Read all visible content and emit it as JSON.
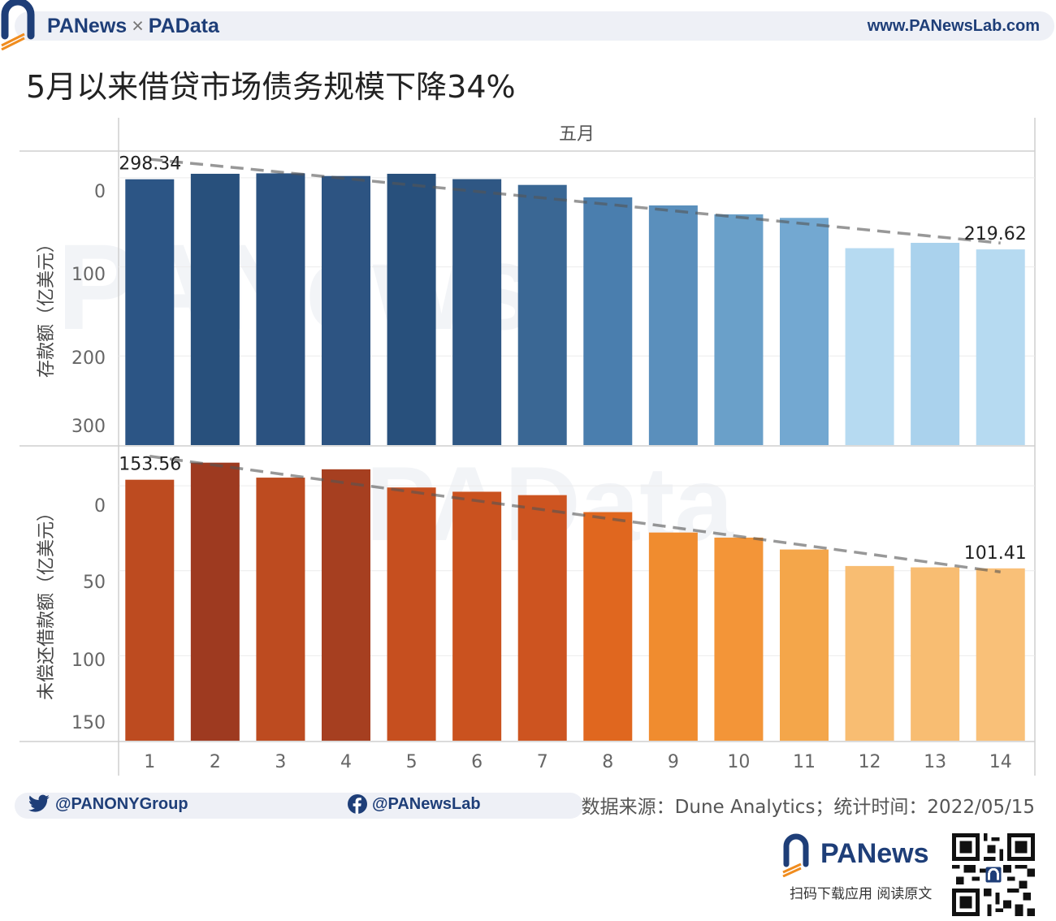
{
  "header": {
    "brand_left": "PANews",
    "brand_times": "×",
    "brand_right": "PAData",
    "website": "www.PANewsLab.com"
  },
  "title": "5月以来借贷市场债务规模下降34%",
  "chart_data": [
    {
      "type": "bar",
      "facet_header": "五月",
      "categories": [
        "1",
        "2",
        "3",
        "4",
        "5",
        "6",
        "7",
        "8",
        "9",
        "10",
        "11",
        "12",
        "13",
        "14"
      ],
      "values": [
        298.34,
        304.5,
        305.0,
        302.0,
        304.5,
        298.5,
        292.0,
        278.0,
        269.0,
        259.0,
        255.0,
        221.0,
        227.0,
        219.62
      ],
      "ylabel": "存款额（亿美元）",
      "ylim": [
        0,
        330
      ],
      "yticks": [
        0,
        100,
        200,
        300
      ],
      "trendline": true,
      "trend_style": "dashed",
      "colors": [
        "#2c5585",
        "#28507c",
        "#2b5280",
        "#2d5482",
        "#28507c",
        "#2f5784",
        "#3a6794",
        "#4a7eae",
        "#5a8fbc",
        "#6aa0c9",
        "#73a8d1",
        "#b6daf1",
        "#aad2ed",
        "#b6daf1"
      ],
      "data_labels": [
        {
          "category": "1",
          "text": "298.34"
        },
        {
          "category": "14",
          "text": "219.62"
        }
      ],
      "grid": true
    },
    {
      "type": "bar",
      "categories": [
        "1",
        "2",
        "3",
        "4",
        "5",
        "6",
        "7",
        "8",
        "9",
        "10",
        "11",
        "12",
        "13",
        "14"
      ],
      "values": [
        153.56,
        163.6,
        154.8,
        159.7,
        149.0,
        146.5,
        144.5,
        134.5,
        122.5,
        119.5,
        112.5,
        102.8,
        102.0,
        101.41
      ],
      "ylabel": "未偿还借款额（亿美元）",
      "ylim": [
        0,
        173
      ],
      "yticks": [
        0,
        50,
        100,
        150
      ],
      "xlabel": "",
      "trendline": true,
      "trend_style": "dashed",
      "colors": [
        "#bd4b20",
        "#9e3a20",
        "#bd4b20",
        "#a63f20",
        "#c64f1f",
        "#ca521f",
        "#cd5420",
        "#e0671f",
        "#f08c2f",
        "#f39538",
        "#f4a64a",
        "#f8bd72",
        "#f8bd72",
        "#f9c078"
      ],
      "data_labels": [
        {
          "category": "1",
          "text": "153.56"
        },
        {
          "category": "14",
          "text": "101.41"
        }
      ],
      "grid": true
    }
  ],
  "footer": {
    "twitter_icon": "twitter-bird-icon",
    "twitter": "@PANONYGroup",
    "facebook_icon": "facebook-icon",
    "facebook": "@PANewsLab",
    "source": "数据来源：Dune Analytics；统计时间：2022/05/15",
    "logo_text": "PANews",
    "cta": "扫码下载应用  阅读原文",
    "qr_icon": "qr-code-icon"
  }
}
